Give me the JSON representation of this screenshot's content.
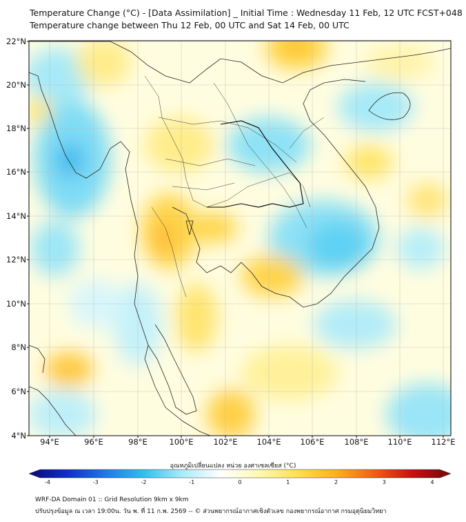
{
  "header": {
    "title_line1": "Temperature Change (°C) - [Data Assimilation] _ Initial Time : Wednesday 11 Feb, 12 UTC FCST+048",
    "title_line2": "Temperature change between Thu 12 Feb, 00 UTC and Sat 14 Feb, 00 UTC"
  },
  "map": {
    "lat_labels": [
      "22°N",
      "20°N",
      "18°N",
      "16°N",
      "14°N",
      "12°N",
      "10°N",
      "8°N",
      "6°N",
      "4°N"
    ],
    "lon_labels": [
      "94°E",
      "96°E",
      "98°E",
      "100°E",
      "102°E",
      "104°E",
      "106°E",
      "108°E",
      "110°E",
      "112°E"
    ],
    "background_color": "#fffde0"
  },
  "colorbar": {
    "title": "อุณหภูมิเปลี่ยนแปลง หน่วย องศาเซลเซียส (°C)",
    "tick_labels": [
      "-4",
      "-3",
      "-2",
      "-1",
      "0",
      "1",
      "2",
      "3",
      "4"
    ],
    "colors": [
      "#08087a",
      "#1030c8",
      "#1e78e6",
      "#30c0f0",
      "#a8ecf8",
      "#ffffff",
      "#fff8b0",
      "#ffe050",
      "#ffb020",
      "#f06010",
      "#c81010",
      "#6e0808"
    ]
  },
  "footer": {
    "line1": "WRF-DA Domain 01 :: Grid Resolution 9km x 9km",
    "line2": "ปรับปรุงข้อมูล ณ เวลา 19:00น. วัน พ. ที่ 11 ก.พ. 2569 -- © ส่วนพยากรณ์อากาศเชิงตัวเลข กองพยากรณ์อากาศ กรมอุตุนิยมวิทยา"
  }
}
